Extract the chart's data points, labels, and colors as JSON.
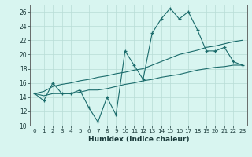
{
  "xlabel": "Humidex (Indice chaleur)",
  "x_values": [
    0,
    1,
    2,
    3,
    4,
    5,
    6,
    7,
    8,
    9,
    10,
    11,
    12,
    13,
    14,
    15,
    16,
    17,
    18,
    19,
    20,
    21,
    22,
    23
  ],
  "main_line": [
    14.5,
    13.5,
    16,
    14.5,
    14.5,
    15,
    12.5,
    10.5,
    14,
    11.5,
    20.5,
    18.5,
    16.5,
    23,
    25,
    26.5,
    25,
    26,
    23.5,
    20.5,
    20.5,
    21,
    19,
    18.5
  ],
  "line_upper": [
    14.5,
    14.8,
    15.5,
    15.8,
    16.0,
    16.3,
    16.5,
    16.8,
    17.0,
    17.3,
    17.5,
    17.8,
    18.0,
    18.5,
    19.0,
    19.5,
    20.0,
    20.3,
    20.6,
    21.0,
    21.2,
    21.5,
    21.8,
    22.0
  ],
  "line_lower": [
    14.5,
    14.2,
    14.5,
    14.5,
    14.5,
    14.7,
    15.0,
    15.0,
    15.2,
    15.5,
    15.8,
    16.0,
    16.3,
    16.5,
    16.8,
    17.0,
    17.2,
    17.5,
    17.8,
    18.0,
    18.2,
    18.3,
    18.5,
    18.5
  ],
  "color": "#1a6b6b",
  "bg_color": "#d8f5f0",
  "grid_color": "#b8dcd6",
  "ylim": [
    10,
    27
  ],
  "yticks": [
    10,
    12,
    14,
    16,
    18,
    20,
    22,
    24,
    26
  ],
  "xlim": [
    -0.5,
    23.5
  ]
}
